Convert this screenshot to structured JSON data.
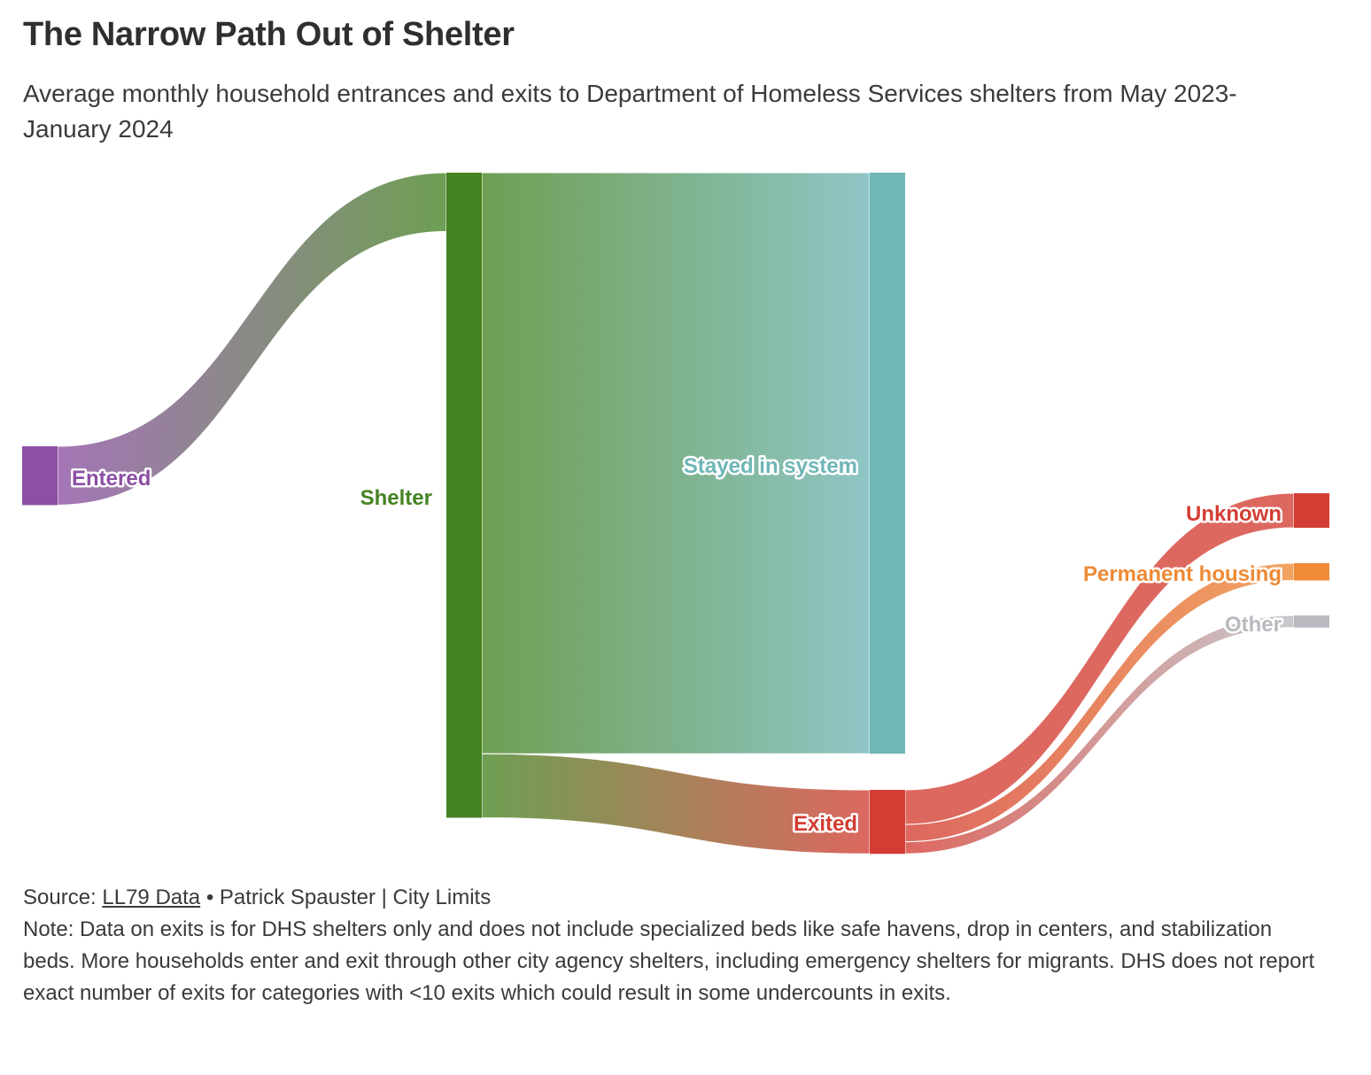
{
  "title": "The Narrow Path Out of Shelter",
  "subtitle": "Average monthly household entrances and exits to Department of Homeless Services shelters from May 2023-January 2024",
  "source": {
    "prefix": "Source: ",
    "link_text": "LL79 Data",
    "suffix": " • Patrick Spauster | City Limits"
  },
  "note": "Note: Data on exits is for DHS shelters only and does not include specialized beds like safe havens, drop in centers, and stabilization beds. More households enter and exit through other city agency shelters, including emergency shelters for migrants. DHS does not report exact number of exits for categories with <10 exits which could result in some undercounts in exits.",
  "colors": {
    "entered": "#8b4fa3",
    "shelter": "#468322",
    "stayed": "#6fb6b6",
    "exited": "#d33d33",
    "unknown": "#d33d33",
    "permanent": "#ef8a35",
    "other": "#b9b9bf"
  },
  "chart_data": {
    "type": "sankey",
    "nodes": [
      {
        "id": "entered",
        "label": "Entered"
      },
      {
        "id": "shelter",
        "label": "Shelter"
      },
      {
        "id": "stayed",
        "label": "Stayed in system"
      },
      {
        "id": "exited",
        "label": "Exited"
      },
      {
        "id": "unknown",
        "label": "Unknown"
      },
      {
        "id": "permanent",
        "label": "Permanent housing"
      },
      {
        "id": "other",
        "label": "Other"
      }
    ],
    "links": [
      {
        "source": "entered",
        "target": "shelter",
        "value": 34
      },
      {
        "source": "shelter",
        "target": "stayed",
        "value": 336
      },
      {
        "source": "shelter",
        "target": "exited",
        "value": 37
      },
      {
        "source": "exited",
        "target": "unknown",
        "value": 20
      },
      {
        "source": "exited",
        "target": "permanent",
        "value": 10
      },
      {
        "source": "exited",
        "target": "other",
        "value": 7
      }
    ]
  }
}
